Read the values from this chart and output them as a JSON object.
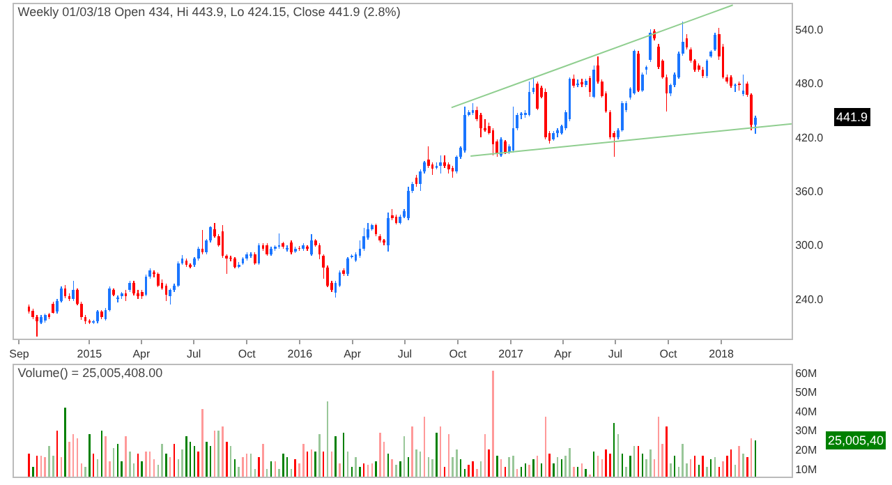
{
  "chart_data": [
    {
      "type": "candlestick",
      "title": "Weekly 01/03/18 Open 434, Hi 443.9, Lo 424.15, Close 441.9 (2.8%)",
      "colors": [
        "#ff0000",
        "#ff0000",
        "#ff0000",
        "#1a75ff",
        "#1a75ff",
        "#ff0000",
        "#ff0000",
        "#1a75ff",
        "#1a75ff",
        "#ff0000",
        "#ff0000",
        "#1a75ff",
        "#ff0000",
        "#ff0000",
        "#ff0000",
        "#ff0000",
        "#1a75ff",
        "#1a75ff",
        "#ff0000",
        "#1a75ff",
        "#1a75ff",
        "#ff0000",
        "#1a75ff",
        "#1a75ff",
        "#ff0000",
        "#1a75ff",
        "#ff0000",
        "#ff0000",
        "#ff0000",
        "#1a75ff",
        "#1a75ff",
        "#ff0000",
        "#ff0000",
        "#ff0000",
        "#ff0000",
        "#1a75ff",
        "#1a75ff",
        "#1a75ff",
        "#1a75ff",
        "#ff0000",
        "#ff0000",
        "#1a75ff",
        "#1a75ff",
        "#ff0000",
        "#1a75ff",
        "#1a75ff",
        "#ff0000",
        "#ff0000",
        "#ff0000",
        "#ff0000",
        "#ff0000",
        "#ff0000",
        "#1a75ff",
        "#1a75ff",
        "#1a75ff",
        "#1a75ff",
        "#ff0000",
        "#1a75ff",
        "#ff0000",
        "#ff0000",
        "#1a75ff",
        "#1a75ff",
        "#1a75ff",
        "#ff0000",
        "#1a75ff",
        "#ff0000",
        "#1a75ff",
        "#ff0000",
        "#1a75ff",
        "#ff0000",
        "#1a75ff",
        "#ff0000",
        "#ff0000",
        "#ff0000",
        "#ff0000",
        "#ff0000",
        "#1a75ff",
        "#1a75ff",
        "#ff0000",
        "#1a75ff",
        "#1a75ff",
        "#1a75ff",
        "#1a75ff",
        "#1a75ff",
        "#1a75ff",
        "#1a75ff",
        "#ff0000",
        "#ff0000",
        "#ff0000",
        "#1a75ff",
        "#ff0000",
        "#ff0000",
        "#1a75ff",
        "#1a75ff",
        "#1a75ff",
        "#1a75ff",
        "#ff0000",
        "#1a75ff",
        "#1a75ff",
        "#ff0000",
        "#ff0000",
        "#1a75ff",
        "#1a75ff",
        "#ff0000",
        "#ff0000",
        "#ff0000",
        "#1a75ff",
        "#1a75ff",
        "#1a75ff",
        "#1a75ff",
        "#1a75ff",
        "#ff0000",
        "#ff0000",
        "#ff0000",
        "#ff0000",
        "#ff0000",
        "#ff0000",
        "#1a75ff",
        "#ff0000",
        "#1a75ff",
        "#1a75ff",
        "#1a75ff",
        "#1a75ff",
        "#1a75ff",
        "#1a75ff",
        "#1a75ff",
        "#ff0000",
        "#ff0000",
        "#ff0000",
        "#ff0000",
        "#1a75ff",
        "#1a75ff",
        "#1a75ff",
        "#1a75ff",
        "#1a75ff",
        "#ff0000",
        "#1a75ff",
        "#ff0000",
        "#1a75ff",
        "#ff0000",
        "#1a75ff",
        "#ff0000",
        "#ff0000",
        "#ff0000",
        "#ff0000",
        "#ff0000",
        "#1a75ff",
        "#1a75ff",
        "#1a75ff",
        "#1a75ff",
        "#1a75ff",
        "#ff0000",
        "#1a75ff",
        "#1a75ff",
        "#1a75ff",
        "#ff0000",
        "#ff0000",
        "#ff0000",
        "#ff0000",
        "#1a75ff",
        "#1a75ff",
        "#1a75ff",
        "#1a75ff",
        "#ff0000",
        "#ff0000",
        "#ff0000",
        "#ff0000",
        "#ff0000",
        "#1a75ff",
        "#1a75ff",
        "#1a75ff",
        "#ff0000",
        "#ff0000",
        "#ff0000",
        "#ff0000",
        "#1a75ff",
        "#ff0000",
        "#1a75ff",
        "#ff0000",
        "#ff0000",
        "#1a75ff"
      ],
      "x": [
        "2014-09-18",
        "2014-09-25",
        "2014-10-02",
        "2014-10-09",
        "2014-10-16",
        "2014-10-23",
        "2014-10-30",
        "2014-11-06",
        "2014-11-13",
        "2014-11-20",
        "2014-11-27",
        "2014-12-04",
        "2014-12-11",
        "2014-12-18",
        "2014-12-25",
        "2015-01-01",
        "2015-01-08",
        "2015-01-15",
        "2015-01-22",
        "2015-01-29",
        "2015-02-05",
        "2015-02-12",
        "2015-02-19",
        "2015-02-26",
        "2015-03-05",
        "2015-03-12",
        "2015-03-19",
        "2015-03-26",
        "2015-04-02",
        "2015-04-09",
        "2015-04-16",
        "2015-04-23",
        "2015-04-30",
        "2015-05-07",
        "2015-05-14",
        "2015-05-21",
        "2015-05-28",
        "2015-06-04",
        "2015-06-11",
        "2015-06-18",
        "2015-06-25",
        "2015-07-02",
        "2015-07-09",
        "2015-07-16",
        "2015-07-23",
        "2015-07-30",
        "2015-08-06",
        "2015-08-13",
        "2015-08-20",
        "2015-08-27",
        "2015-09-03",
        "2015-09-10",
        "2015-09-17",
        "2015-09-24",
        "2015-10-01",
        "2015-10-08",
        "2015-10-15",
        "2015-10-22",
        "2015-10-29",
        "2015-11-05",
        "2015-11-12",
        "2015-11-19",
        "2015-11-26",
        "2015-12-03",
        "2015-12-10",
        "2015-12-17",
        "2015-12-24",
        "2015-12-31",
        "2016-01-07",
        "2016-01-14",
        "2016-01-21",
        "2016-01-28",
        "2016-02-04",
        "2016-02-11",
        "2016-02-18",
        "2016-02-25",
        "2016-03-03",
        "2016-03-10",
        "2016-03-17",
        "2016-03-24",
        "2016-03-31",
        "2016-04-07",
        "2016-04-14",
        "2016-04-21",
        "2016-04-28",
        "2016-05-05",
        "2016-05-12",
        "2016-05-19",
        "2016-05-26",
        "2016-06-02",
        "2016-06-09",
        "2016-06-16",
        "2016-06-23",
        "2016-06-30",
        "2016-07-07",
        "2016-07-14",
        "2016-07-21",
        "2016-07-28",
        "2016-08-04",
        "2016-08-11",
        "2016-08-18",
        "2016-08-25",
        "2016-09-01",
        "2016-09-08",
        "2016-09-15",
        "2016-09-22",
        "2016-09-29",
        "2016-10-06",
        "2016-10-13",
        "2016-10-20",
        "2016-10-27",
        "2016-11-03",
        "2016-11-10",
        "2016-11-17",
        "2016-11-24",
        "2016-12-01",
        "2016-12-08",
        "2016-12-15",
        "2016-12-22",
        "2016-12-29",
        "2017-01-05",
        "2017-01-12",
        "2017-01-19",
        "2017-01-26",
        "2017-02-02",
        "2017-02-09",
        "2017-02-16",
        "2017-02-23",
        "2017-03-02",
        "2017-03-09",
        "2017-03-16",
        "2017-03-23",
        "2017-03-30",
        "2017-04-06",
        "2017-04-13",
        "2017-04-20",
        "2017-04-27",
        "2017-05-04",
        "2017-05-11",
        "2017-05-18",
        "2017-05-25",
        "2017-06-01",
        "2017-06-08",
        "2017-06-15",
        "2017-06-22",
        "2017-06-29",
        "2017-07-06",
        "2017-07-13",
        "2017-07-20",
        "2017-07-27",
        "2017-08-03",
        "2017-08-10",
        "2017-08-17",
        "2017-08-24",
        "2017-08-31",
        "2017-09-07",
        "2017-09-14",
        "2017-09-21",
        "2017-09-28",
        "2017-10-05",
        "2017-10-12",
        "2017-10-19",
        "2017-10-26",
        "2017-11-02",
        "2017-11-09",
        "2017-11-16",
        "2017-11-23",
        "2017-11-30",
        "2017-12-07",
        "2017-12-14",
        "2017-12-21",
        "2017-12-28",
        "2018-01-04",
        "2018-01-11",
        "2018-01-18",
        "2018-01-25",
        "2018-02-01",
        "2018-02-08",
        "2018-02-15",
        "2018-02-22",
        "2018-03-01"
      ],
      "ohlc": [
        [
          232,
          234,
          224,
          226
        ],
        [
          227,
          229,
          218,
          220
        ],
        [
          220,
          222,
          198,
          215
        ],
        [
          214,
          222,
          212,
          220
        ],
        [
          216,
          224,
          214,
          222
        ],
        [
          223,
          225,
          218,
          220
        ],
        [
          235,
          237,
          224,
          225
        ],
        [
          226,
          240,
          224,
          238
        ],
        [
          238,
          254,
          236,
          252
        ],
        [
          252,
          256,
          241,
          243
        ],
        [
          243,
          246,
          238,
          240
        ],
        [
          240,
          260,
          238,
          250
        ],
        [
          250,
          252,
          233,
          235
        ],
        [
          235,
          237,
          217,
          220
        ],
        [
          220,
          222,
          212,
          215
        ],
        [
          216,
          218,
          212,
          214
        ],
        [
          214,
          217,
          212,
          215
        ],
        [
          215,
          228,
          213,
          226
        ],
        [
          226,
          228,
          218,
          220
        ],
        [
          218,
          230,
          216,
          228
        ],
        [
          228,
          254,
          226,
          252
        ],
        [
          250,
          252,
          243,
          245
        ],
        [
          240,
          244,
          236,
          242
        ],
        [
          243,
          248,
          240,
          246
        ],
        [
          246,
          250,
          238,
          243
        ],
        [
          250,
          260,
          248,
          258
        ],
        [
          258,
          260,
          244,
          246
        ],
        [
          246,
          250,
          240,
          243
        ],
        [
          248,
          250,
          240,
          243
        ],
        [
          245,
          267,
          243,
          265
        ],
        [
          265,
          274,
          263,
          272
        ],
        [
          270,
          272,
          264,
          268
        ],
        [
          268,
          270,
          253,
          255
        ],
        [
          258,
          262,
          250,
          252
        ],
        [
          255,
          257,
          238,
          245
        ],
        [
          243,
          252,
          234,
          250
        ],
        [
          250,
          257,
          248,
          255
        ],
        [
          255,
          282,
          253,
          280
        ],
        [
          280,
          289,
          278,
          285
        ],
        [
          283,
          285,
          276,
          278
        ],
        [
          278,
          280,
          274,
          276
        ],
        [
          278,
          287,
          276,
          285
        ],
        [
          285,
          298,
          283,
          296
        ],
        [
          296,
          317,
          290,
          292
        ],
        [
          292,
          307,
          290,
          305
        ],
        [
          305,
          321,
          303,
          320
        ],
        [
          318,
          325,
          308,
          310
        ],
        [
          310,
          312,
          298,
          300
        ],
        [
          315,
          322,
          286,
          288
        ],
        [
          288,
          290,
          268,
          285
        ],
        [
          286,
          288,
          282,
          285
        ],
        [
          285,
          287,
          274,
          276
        ],
        [
          276,
          281,
          274,
          278
        ],
        [
          280,
          287,
          278,
          285
        ],
        [
          285,
          292,
          283,
          290
        ],
        [
          288,
          292,
          286,
          290
        ],
        [
          290,
          292,
          278,
          280
        ],
        [
          280,
          302,
          278,
          300
        ],
        [
          300,
          302,
          294,
          296
        ],
        [
          300,
          302,
          288,
          290
        ],
        [
          290,
          298,
          288,
          296
        ],
        [
          296,
          300,
          294,
          298
        ],
        [
          298,
          313,
          296,
          300
        ],
        [
          302,
          304,
          296,
          298
        ],
        [
          295,
          300,
          293,
          297
        ],
        [
          303,
          305,
          290,
          292
        ],
        [
          293,
          298,
          291,
          296
        ],
        [
          297,
          299,
          294,
          296
        ],
        [
          296,
          302,
          294,
          300
        ],
        [
          298,
          300,
          294,
          296
        ],
        [
          290,
          312,
          288,
          305
        ],
        [
          305,
          307,
          298,
          300
        ],
        [
          300,
          302,
          284,
          290
        ],
        [
          288,
          290,
          263,
          275
        ],
        [
          275,
          277,
          253,
          255
        ],
        [
          258,
          260,
          248,
          250
        ],
        [
          247,
          260,
          242,
          258
        ],
        [
          255,
          272,
          253,
          270
        ],
        [
          272,
          274,
          266,
          268
        ],
        [
          268,
          287,
          266,
          285
        ],
        [
          287,
          290,
          285,
          288
        ],
        [
          283,
          292,
          281,
          290
        ],
        [
          288,
          305,
          286,
          296
        ],
        [
          296,
          319,
          294,
          310
        ],
        [
          308,
          325,
          306,
          318
        ],
        [
          318,
          324,
          316,
          322
        ],
        [
          322,
          324,
          310,
          312
        ],
        [
          310,
          312,
          303,
          305
        ],
        [
          305,
          307,
          300,
          303
        ],
        [
          300,
          336,
          293,
          330
        ],
        [
          333,
          340,
          328,
          330
        ],
        [
          332,
          334,
          323,
          325
        ],
        [
          325,
          334,
          323,
          332
        ],
        [
          332,
          340,
          330,
          338
        ],
        [
          330,
          365,
          328,
          360
        ],
        [
          360,
          370,
          358,
          368
        ],
        [
          375,
          378,
          365,
          368
        ],
        [
          368,
          384,
          360,
          382
        ],
        [
          382,
          394,
          380,
          392
        ],
        [
          395,
          410,
          386,
          388
        ],
        [
          390,
          392,
          378,
          385
        ],
        [
          386,
          392,
          384,
          388
        ],
        [
          388,
          400,
          380,
          392
        ],
        [
          392,
          400,
          386,
          388
        ],
        [
          390,
          392,
          380,
          384
        ],
        [
          386,
          388,
          375,
          382
        ],
        [
          382,
          400,
          380,
          398
        ],
        [
          398,
          410,
          396,
          408
        ],
        [
          405,
          454,
          403,
          445
        ],
        [
          445,
          450,
          443,
          448
        ],
        [
          447,
          458,
          445,
          450
        ],
        [
          450,
          454,
          438,
          440
        ],
        [
          445,
          447,
          420,
          430
        ],
        [
          430,
          440,
          426,
          428
        ],
        [
          432,
          436,
          423,
          425
        ],
        [
          428,
          430,
          400,
          412
        ],
        [
          415,
          418,
          398,
          402
        ],
        [
          400,
          420,
          398,
          418
        ],
        [
          415,
          417,
          401,
          403
        ],
        [
          403,
          412,
          401,
          410
        ],
        [
          405,
          454,
          403,
          430
        ],
        [
          430,
          447,
          428,
          445
        ],
        [
          445,
          448,
          440,
          446
        ],
        [
          445,
          450,
          442,
          447
        ],
        [
          445,
          482,
          443,
          470
        ],
        [
          470,
          486,
          468,
          475
        ],
        [
          480,
          482,
          450,
          452
        ],
        [
          475,
          477,
          463,
          465
        ],
        [
          470,
          474,
          418,
          420
        ],
        [
          425,
          427,
          413,
          416
        ],
        [
          418,
          427,
          416,
          425
        ],
        [
          425,
          430,
          420,
          428
        ],
        [
          425,
          434,
          423,
          432
        ],
        [
          430,
          450,
          428,
          448
        ],
        [
          440,
          487,
          438,
          485
        ],
        [
          485,
          490,
          475,
          477
        ],
        [
          478,
          484,
          476,
          480
        ],
        [
          481,
          485,
          476,
          479
        ],
        [
          478,
          485,
          476,
          483
        ],
        [
          486,
          488,
          465,
          470
        ],
        [
          465,
          500,
          463,
          495
        ],
        [
          500,
          510,
          480,
          482
        ],
        [
          482,
          484,
          464,
          466
        ],
        [
          469,
          471,
          447,
          449
        ],
        [
          448,
          450,
          418,
          420
        ],
        [
          425,
          427,
          398,
          420
        ],
        [
          420,
          430,
          418,
          428
        ],
        [
          428,
          460,
          426,
          458
        ],
        [
          450,
          460,
          448,
          458
        ],
        [
          464,
          476,
          462,
          474
        ],
        [
          469,
          518,
          467,
          516
        ],
        [
          513,
          516,
          470,
          472
        ],
        [
          472,
          492,
          470,
          490
        ],
        [
          495,
          500,
          490,
          498
        ],
        [
          506,
          540,
          504,
          536
        ],
        [
          538,
          540,
          528,
          530
        ],
        [
          521,
          524,
          496,
          498
        ],
        [
          505,
          507,
          485,
          487
        ],
        [
          487,
          490,
          449,
          469
        ],
        [
          469,
          480,
          466,
          478
        ],
        [
          478,
          492,
          476,
          490
        ],
        [
          487,
          515,
          485,
          513
        ],
        [
          513,
          549,
          511,
          526
        ],
        [
          530,
          535,
          518,
          520
        ],
        [
          518,
          520,
          503,
          505
        ],
        [
          505,
          507,
          493,
          495
        ],
        [
          500,
          502,
          493,
          495
        ],
        [
          495,
          498,
          486,
          488
        ],
        [
          488,
          507,
          486,
          505
        ],
        [
          510,
          517,
          508,
          515
        ],
        [
          518,
          536,
          516,
          534
        ],
        [
          535,
          542,
          506,
          510
        ],
        [
          521,
          524,
          485,
          487
        ],
        [
          487,
          490,
          480,
          482
        ],
        [
          487,
          489,
          475,
          477
        ],
        [
          477,
          480,
          470,
          478
        ],
        [
          480,
          482,
          472,
          478
        ],
        [
          468,
          490,
          466,
          472
        ],
        [
          480,
          482,
          465,
          467
        ],
        [
          467,
          469,
          428,
          434
        ],
        [
          434,
          443.9,
          424.15,
          441.9
        ]
      ],
      "series": [
        {
          "type": "line",
          "color": "#8fce8f",
          "x": [
            "2016-09-20",
            "2018-01-21"
          ],
          "values": [
            453,
            567
          ]
        },
        {
          "type": "line",
          "color": "#8fce8f",
          "x": [
            "2016-10-23",
            "2018-05-03"
          ],
          "values": [
            399,
            435
          ]
        }
      ],
      "xlim": [
        "2014-08-23",
        "2018-05-03"
      ],
      "ylim": [
        196,
        568
      ],
      "xticks": [
        {
          "value": "2014-09-01",
          "label": "Sep"
        },
        {
          "value": "2015-01-01",
          "label": "2015"
        },
        {
          "value": "2015-04-01",
          "label": "Apr"
        },
        {
          "value": "2015-07-01",
          "label": "Jul"
        },
        {
          "value": "2015-10-01",
          "label": "Oct"
        },
        {
          "value": "2016-01-01",
          "label": "2016"
        },
        {
          "value": "2016-04-01",
          "label": "Apr"
        },
        {
          "value": "2016-07-01",
          "label": "Jul"
        },
        {
          "value": "2016-10-01",
          "label": "Oct"
        },
        {
          "value": "2017-01-01",
          "label": "2017"
        },
        {
          "value": "2017-04-01",
          "label": "Apr"
        },
        {
          "value": "2017-07-01",
          "label": "Jul"
        },
        {
          "value": "2017-10-01",
          "label": "Oct"
        },
        {
          "value": "2018-01-01",
          "label": "2018"
        }
      ],
      "yticks": [
        {
          "value": 240,
          "label": "240.0"
        },
        {
          "value": 300,
          "label": "300.0"
        },
        {
          "value": 360,
          "label": "360.0"
        },
        {
          "value": 420,
          "label": "420.0"
        },
        {
          "value": 480,
          "label": "480.0"
        },
        {
          "value": 540,
          "label": "540.0"
        }
      ],
      "annotations": [
        "441.9"
      ]
    },
    {
      "type": "bar",
      "title": "Volume() = 25,005,408.00",
      "tick_labels": "y",
      "x": [
        "2014-09-18",
        "2014-09-25",
        "2014-10-02",
        "2014-10-09",
        "2014-10-16",
        "2014-10-23",
        "2014-10-30",
        "2014-11-06",
        "2014-11-13",
        "2014-11-20",
        "2014-11-27",
        "2014-12-04",
        "2014-12-11",
        "2014-12-18",
        "2014-12-25",
        "2015-01-01",
        "2015-01-08",
        "2015-01-15",
        "2015-01-22",
        "2015-01-29",
        "2015-02-05",
        "2015-02-12",
        "2015-02-19",
        "2015-02-26",
        "2015-03-05",
        "2015-03-12",
        "2015-03-19",
        "2015-03-26",
        "2015-04-02",
        "2015-04-09",
        "2015-04-16",
        "2015-04-23",
        "2015-04-30",
        "2015-05-07",
        "2015-05-14",
        "2015-05-21",
        "2015-05-28",
        "2015-06-04",
        "2015-06-11",
        "2015-06-18",
        "2015-06-25",
        "2015-07-02",
        "2015-07-09",
        "2015-07-16",
        "2015-07-23",
        "2015-07-30",
        "2015-08-06",
        "2015-08-13",
        "2015-08-20",
        "2015-08-27",
        "2015-09-03",
        "2015-09-10",
        "2015-09-17",
        "2015-09-24",
        "2015-10-01",
        "2015-10-08",
        "2015-10-15",
        "2015-10-22",
        "2015-10-29",
        "2015-11-05",
        "2015-11-12",
        "2015-11-19",
        "2015-11-26",
        "2015-12-03",
        "2015-12-10",
        "2015-12-17",
        "2015-12-24",
        "2015-12-31",
        "2016-01-07",
        "2016-01-14",
        "2016-01-21",
        "2016-01-28",
        "2016-02-04",
        "2016-02-11",
        "2016-02-18",
        "2016-02-25",
        "2016-03-03",
        "2016-03-10",
        "2016-03-17",
        "2016-03-24",
        "2016-03-31",
        "2016-04-07",
        "2016-04-14",
        "2016-04-21",
        "2016-04-28",
        "2016-05-05",
        "2016-05-12",
        "2016-05-19",
        "2016-05-26",
        "2016-06-02",
        "2016-06-09",
        "2016-06-16",
        "2016-06-23",
        "2016-06-30",
        "2016-07-07",
        "2016-07-14",
        "2016-07-21",
        "2016-07-28",
        "2016-08-04",
        "2016-08-11",
        "2016-08-18",
        "2016-08-25",
        "2016-09-01",
        "2016-09-08",
        "2016-09-15",
        "2016-09-22",
        "2016-09-29",
        "2016-10-06",
        "2016-10-13",
        "2016-10-20",
        "2016-10-27",
        "2016-11-03",
        "2016-11-10",
        "2016-11-17",
        "2016-11-24",
        "2016-12-01",
        "2016-12-08",
        "2016-12-15",
        "2016-12-22",
        "2016-12-29",
        "2017-01-05",
        "2017-01-12",
        "2017-01-19",
        "2017-01-26",
        "2017-02-02",
        "2017-02-09",
        "2017-02-16",
        "2017-02-23",
        "2017-03-02",
        "2017-03-09",
        "2017-03-16",
        "2017-03-23",
        "2017-03-30",
        "2017-04-06",
        "2017-04-13",
        "2017-04-20",
        "2017-04-27",
        "2017-05-04",
        "2017-05-11",
        "2017-05-18",
        "2017-05-25",
        "2017-06-01",
        "2017-06-08",
        "2017-06-15",
        "2017-06-22",
        "2017-06-29",
        "2017-07-06",
        "2017-07-13",
        "2017-07-20",
        "2017-07-27",
        "2017-08-03",
        "2017-08-10",
        "2017-08-17",
        "2017-08-24",
        "2017-08-31",
        "2017-09-07",
        "2017-09-14",
        "2017-09-21",
        "2017-09-28",
        "2017-10-05",
        "2017-10-12",
        "2017-10-19",
        "2017-10-26",
        "2017-11-02",
        "2017-11-09",
        "2017-11-16",
        "2017-11-23",
        "2017-11-30",
        "2017-12-07",
        "2017-12-14",
        "2017-12-21",
        "2017-12-28",
        "2018-01-04",
        "2018-01-11",
        "2018-01-18",
        "2018-01-25",
        "2018-02-01",
        "2018-02-08",
        "2018-02-15",
        "2018-02-22",
        "2018-03-01"
      ],
      "values": [
        18,
        11,
        17,
        17,
        16,
        22,
        17,
        30,
        16,
        42,
        24,
        28,
        26,
        13,
        11,
        28,
        18,
        15,
        30,
        27,
        14,
        21,
        23,
        14,
        27,
        19,
        13,
        18,
        14,
        19,
        19,
        15,
        12,
        23,
        18,
        16,
        23,
        15,
        20,
        27,
        24,
        22,
        19,
        41,
        24,
        22,
        30,
        30,
        32,
        24,
        22,
        15,
        11,
        16,
        18,
        18,
        10,
        16,
        23,
        10,
        14,
        14,
        10,
        18,
        16,
        10,
        15,
        13,
        23,
        19,
        20,
        19,
        28,
        19,
        45,
        19,
        27,
        13,
        29,
        19,
        11,
        16,
        11,
        13,
        12,
        13,
        14,
        29,
        24,
        18,
        15,
        12,
        14,
        27,
        16,
        32,
        20,
        19,
        37,
        16,
        15,
        29,
        32,
        11,
        28,
        16,
        20,
        15,
        10,
        12,
        14,
        10,
        14,
        28,
        20,
        61,
        17,
        15,
        11,
        16,
        17,
        10,
        11,
        13,
        12,
        15,
        17,
        13,
        37,
        18,
        13,
        16,
        15,
        17,
        21,
        11,
        11,
        13,
        10,
        7,
        19,
        17,
        15,
        20,
        18,
        34,
        28,
        18,
        11,
        17,
        22,
        22,
        18,
        15,
        20,
        15,
        37,
        23,
        32,
        13,
        17,
        11,
        23,
        13,
        15,
        17,
        12,
        17,
        11,
        15,
        16,
        11,
        14,
        17,
        20,
        12,
        22,
        18,
        16,
        26,
        25
      ],
      "colors": [
        "#ff0000",
        "#008000",
        "#ff0000",
        "#ff9999",
        "#ff9999",
        "#99c799",
        "#99c799",
        "#ff0000",
        "#ff9999",
        "#008000",
        "#ff9999",
        "#ff9999",
        "#ff9999",
        "#ff9999",
        "#99c799",
        "#008000",
        "#ff0000",
        "#99c799",
        "#008000",
        "#ff9999",
        "#ff9999",
        "#99c799",
        "#008000",
        "#008000",
        "#ff9999",
        "#99c799",
        "#99c799",
        "#ff0000",
        "#008000",
        "#ff9999",
        "#ff9999",
        "#ff9999",
        "#99c799",
        "#99c799",
        "#008000",
        "#ff9999",
        "#ff0000",
        "#99c799",
        "#99c799",
        "#008000",
        "#008000",
        "#008000",
        "#ff0000",
        "#ff9999",
        "#008000",
        "#008000",
        "#ff9999",
        "#99c799",
        "#ff9999",
        "#ff0000",
        "#99c799",
        "#008000",
        "#99c799",
        "#ff9999",
        "#ff9999",
        "#99c799",
        "#99c799",
        "#ff0000",
        "#ff9999",
        "#99c799",
        "#008000",
        "#ff9999",
        "#99c799",
        "#008000",
        "#008000",
        "#99c799",
        "#ff0000",
        "#ff9999",
        "#ff9999",
        "#ff0000",
        "#ff9999",
        "#008000",
        "#99c799",
        "#ff0000",
        "#99c799",
        "#ff9999",
        "#008000",
        "#ff9999",
        "#008000",
        "#99c799",
        "#008000",
        "#99c799",
        "#008000",
        "#ff0000",
        "#ff9999",
        "#ff9999",
        "#008000",
        "#ff9999",
        "#ff9999",
        "#008000",
        "#ff9999",
        "#99c799",
        "#008000",
        "#99c799",
        "#008000",
        "#ff9999",
        "#99c799",
        "#99c799",
        "#ff9999",
        "#99c799",
        "#99c799",
        "#008000",
        "#ff9999",
        "#ff0000",
        "#ff9999",
        "#99c799",
        "#99c799",
        "#008000",
        "#008000",
        "#ff0000",
        "#ff0000",
        "#ff9999",
        "#99c799",
        "#ff9999",
        "#ff0000",
        "#ff9999",
        "#008000",
        "#ff9999",
        "#ff0000",
        "#99c799",
        "#99c799",
        "#ff9999",
        "#008000",
        "#008000",
        "#ff9999",
        "#008000",
        "#ff9999",
        "#008000",
        "#ff9999",
        "#ff0000",
        "#008000",
        "#99c799",
        "#008000",
        "#99c799",
        "#99c799",
        "#ff9999",
        "#008000",
        "#ff9999",
        "#008000",
        "#ff9999",
        "#008000",
        "#ff9999",
        "#ff9999",
        "#ff0000",
        "#ff0000",
        "#008000",
        "#99c799",
        "#008000",
        "#99c799",
        "#008000",
        "#99c799",
        "#ff0000",
        "#008000",
        "#99c799",
        "#99c799",
        "#ff9999",
        "#ff9999",
        "#ff9999",
        "#ff0000",
        "#99c799",
        "#008000",
        "#99c799",
        "#99c799",
        "#99c799",
        "#ff9999",
        "#ff0000",
        "#008000",
        "#ff0000",
        "#99c799",
        "#008000",
        "#99c799",
        "#ff0000",
        "#ff9999",
        "#ff0000",
        "#ff0000",
        "#99c799",
        "#ff9999",
        "#99c799",
        "#ff0000",
        "#ff9999",
        "#008000"
      ],
      "xlim": [
        "2014-08-23",
        "2018-05-03"
      ],
      "ylim": [
        6,
        64
      ],
      "yticks": [
        {
          "value": 10,
          "label": "10M"
        },
        {
          "value": 20,
          "label": "20M"
        },
        {
          "value": 30,
          "label": "30M"
        },
        {
          "value": 40,
          "label": "40M"
        },
        {
          "value": 50,
          "label": "50M"
        },
        {
          "value": 60,
          "label": "60M"
        }
      ],
      "annotations": [
        "25,005,40"
      ]
    }
  ]
}
